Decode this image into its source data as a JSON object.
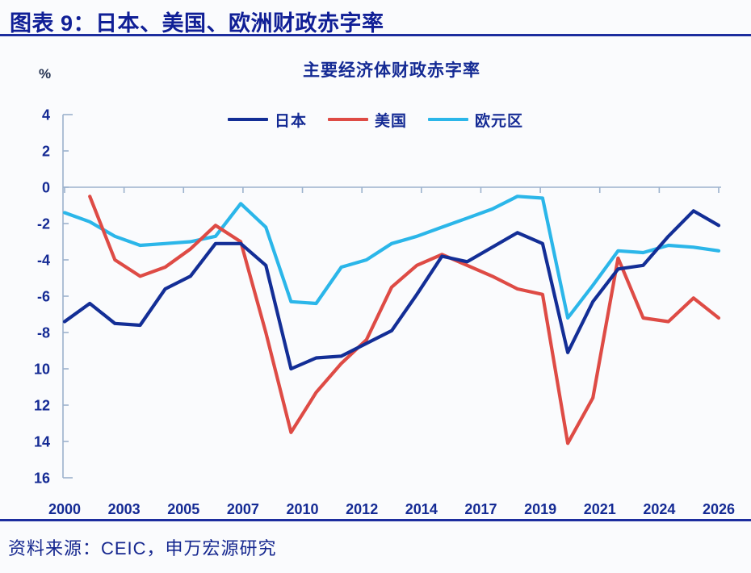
{
  "header": {
    "title": "图表 9：日本、美国、欧洲财政赤字率"
  },
  "footer": {
    "source": "资料来源：CEIC，申万宏源研究"
  },
  "chart_data": {
    "type": "line",
    "title": "主要经济体财政赤字率",
    "unit_label": "%",
    "xlabel": "",
    "ylabel": "%",
    "xlim": [
      2000,
      2026
    ],
    "ylim": [
      -16,
      4
    ],
    "grid": "zero-line-only",
    "legend_position": "top-center",
    "axis_color": "#9cb2cd",
    "label_color": "#142a94",
    "x_tick_labels": [
      "2000",
      "2003",
      "2005",
      "2007",
      "2010",
      "2012",
      "2014",
      "2017",
      "2019",
      "2021",
      "2024",
      "2026"
    ],
    "y_tick_labels": [
      "4",
      "2",
      "0",
      "-2",
      "-4",
      "-6",
      "-8",
      "10",
      "12",
      "14",
      "16"
    ],
    "y_tick_values": [
      4,
      2,
      0,
      -2,
      -4,
      -6,
      -8,
      -10,
      -12,
      -14,
      -16
    ],
    "x": [
      2000,
      2001,
      2002,
      2003,
      2004,
      2005,
      2006,
      2007,
      2008,
      2009,
      2010,
      2011,
      2012,
      2013,
      2014,
      2015,
      2016,
      2017,
      2018,
      2019,
      2020,
      2021,
      2022,
      2023,
      2024,
      2025,
      2026
    ],
    "series": [
      {
        "name": "日本",
        "color": "#132e96",
        "start_year": 2000,
        "values": [
          -7.4,
          -6.4,
          -7.5,
          -7.6,
          -5.6,
          -4.9,
          -3.1,
          -3.1,
          -4.3,
          -10.0,
          -9.4,
          -9.3,
          -8.6,
          -7.9,
          -5.9,
          -3.8,
          -4.1,
          -3.3,
          -2.5,
          -3.1,
          -9.1,
          -6.3,
          -4.5,
          -4.3,
          -2.7,
          -1.3,
          -2.1
        ]
      },
      {
        "name": "美国",
        "color": "#de4b45",
        "start_year": 2001,
        "values": [
          -0.5,
          -4.0,
          -4.9,
          -4.4,
          -3.4,
          -2.1,
          -3.0,
          -8.0,
          -13.5,
          -11.3,
          -9.7,
          -8.4,
          -5.5,
          -4.3,
          -3.7,
          -4.3,
          -4.9,
          -5.6,
          -5.9,
          -14.1,
          -11.6,
          -3.9,
          -7.2,
          -7.4,
          -6.1,
          -7.2
        ]
      },
      {
        "name": "欧元区",
        "color": "#2bb6e9",
        "start_year": 2000,
        "values": [
          -1.4,
          -1.9,
          -2.7,
          -3.2,
          -3.1,
          -3.0,
          -2.7,
          -0.9,
          -2.2,
          -6.3,
          -6.4,
          -4.4,
          -4.0,
          -3.1,
          -2.7,
          -2.2,
          -1.7,
          -1.2,
          -0.5,
          -0.6,
          -7.2,
          -5.4,
          -3.5,
          -3.6,
          -3.2,
          -3.3,
          -3.5
        ]
      }
    ]
  }
}
